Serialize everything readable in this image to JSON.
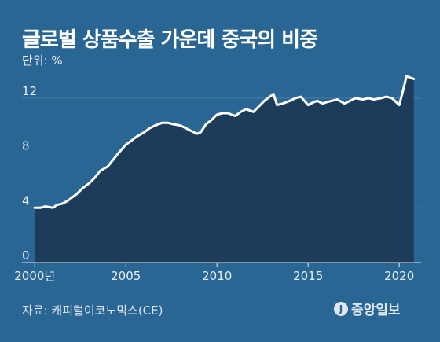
{
  "header": {
    "title": "글로벌 상품수출 가운데 중국의 비중",
    "unit_label": "단위: %"
  },
  "footer": {
    "source": "자료: 캐피털이코노믹스(CE)",
    "logo_text": "중앙일보",
    "logo_mark": "J"
  },
  "colors": {
    "background": "#2a6694",
    "area_fill": "#1d3c5a",
    "line": "#ffffff",
    "grid": "#4d7ea6"
  },
  "chart_data": {
    "type": "area",
    "title": "글로벌 상품수출 가운데 중국의 비중",
    "ylabel": "단위: %",
    "xlim": [
      1999.3,
      2021.2
    ],
    "ylim": [
      0,
      14
    ],
    "yticks": [
      0,
      4,
      8,
      12
    ],
    "xticks": [
      2000,
      2005,
      2010,
      2015,
      2020
    ],
    "xtick_labels": [
      "2000년",
      "2005",
      "2010",
      "2015",
      "2020"
    ],
    "grid": true,
    "x": [
      2000.0,
      2000.3,
      2000.6,
      2001.0,
      2001.2,
      2001.5,
      2001.8,
      2002.0,
      2002.3,
      2002.6,
      2003.0,
      2003.3,
      2003.6,
      2004.0,
      2004.3,
      2004.6,
      2005.0,
      2005.3,
      2005.6,
      2006.0,
      2006.3,
      2006.6,
      2007.0,
      2007.3,
      2007.6,
      2008.0,
      2008.3,
      2008.6,
      2008.9,
      2009.1,
      2009.4,
      2009.7,
      2010.0,
      2010.3,
      2010.6,
      2011.0,
      2011.3,
      2011.6,
      2012.0,
      2012.3,
      2012.6,
      2012.9,
      2013.1,
      2013.3,
      2013.6,
      2014.0,
      2014.3,
      2014.6,
      2015.0,
      2015.3,
      2015.5,
      2015.8,
      2016.0,
      2016.3,
      2016.6,
      2017.0,
      2017.3,
      2017.6,
      2018.0,
      2018.3,
      2018.6,
      2019.0,
      2019.3,
      2019.6,
      2020.0,
      2020.2,
      2020.4,
      2020.6,
      2020.8
    ],
    "values": [
      4.0,
      4.0,
      4.1,
      4.0,
      4.2,
      4.3,
      4.5,
      4.7,
      5.0,
      5.4,
      5.8,
      6.2,
      6.7,
      7.0,
      7.5,
      8.0,
      8.6,
      8.9,
      9.2,
      9.5,
      9.8,
      10.0,
      10.2,
      10.2,
      10.1,
      10.0,
      9.8,
      9.6,
      9.4,
      9.5,
      10.1,
      10.4,
      10.8,
      10.9,
      10.9,
      10.7,
      11.0,
      11.2,
      11.0,
      11.4,
      11.8,
      12.1,
      12.3,
      11.5,
      11.6,
      11.8,
      12.0,
      12.1,
      11.5,
      11.7,
      11.8,
      11.6,
      11.7,
      11.8,
      11.9,
      11.6,
      11.8,
      12.0,
      11.9,
      12.0,
      11.9,
      12.0,
      12.1,
      12.0,
      11.5,
      12.5,
      13.6,
      13.5,
      13.4
    ]
  }
}
